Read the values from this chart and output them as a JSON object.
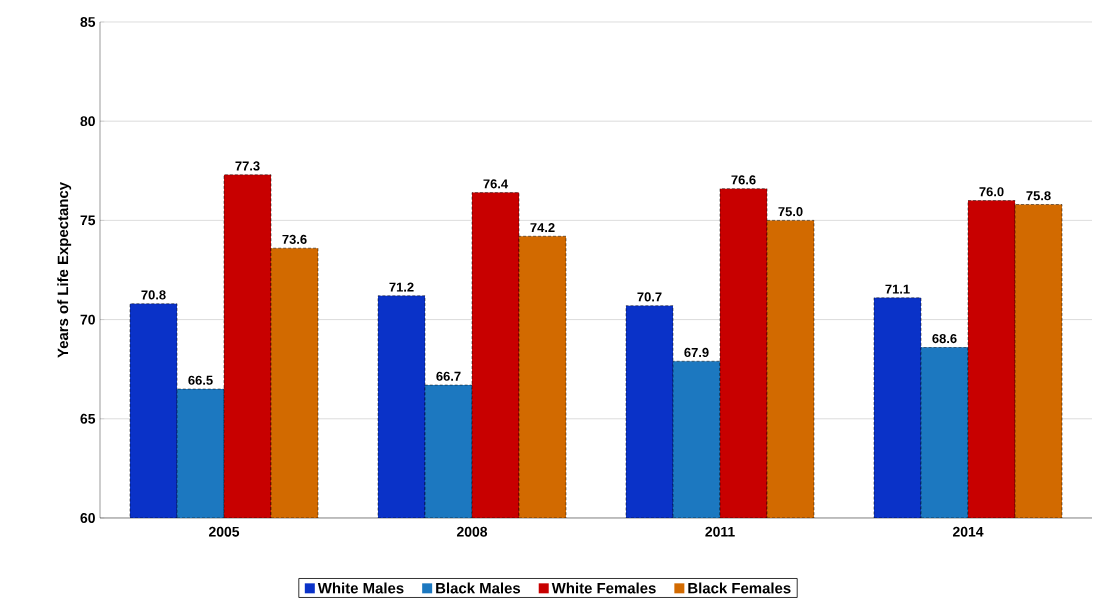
{
  "chart_data": {
    "type": "bar",
    "ylabel": "Years of Life Expectancy",
    "categories": [
      "2005",
      "2008",
      "2011",
      "2014"
    ],
    "series": [
      {
        "name": "White Males",
        "color": "#0a32c8",
        "values": [
          70.8,
          71.2,
          70.7,
          71.1
        ],
        "value_labels": [
          "70.8",
          "71.2",
          "70.7",
          "71.1"
        ]
      },
      {
        "name": "Black Males",
        "color": "#1c78c0",
        "values": [
          66.5,
          66.7,
          67.9,
          68.6
        ],
        "value_labels": [
          "66.5",
          "66.7",
          "67.9",
          "68.6"
        ]
      },
      {
        "name": "White Females",
        "color": "#c80000",
        "values": [
          77.3,
          76.4,
          76.6,
          76.0
        ],
        "value_labels": [
          "77.3",
          "76.4",
          "76.6",
          "76.0"
        ]
      },
      {
        "name": "Black Females",
        "color": "#d26a00",
        "values": [
          73.6,
          74.2,
          75.0,
          75.8
        ],
        "value_labels": [
          "73.6",
          "74.2",
          "75.0",
          "75.8"
        ]
      }
    ],
    "ylim": [
      60,
      85
    ],
    "yticks": [
      60,
      65,
      70,
      75,
      80,
      85
    ],
    "grid": "y",
    "legend": "bottom"
  }
}
